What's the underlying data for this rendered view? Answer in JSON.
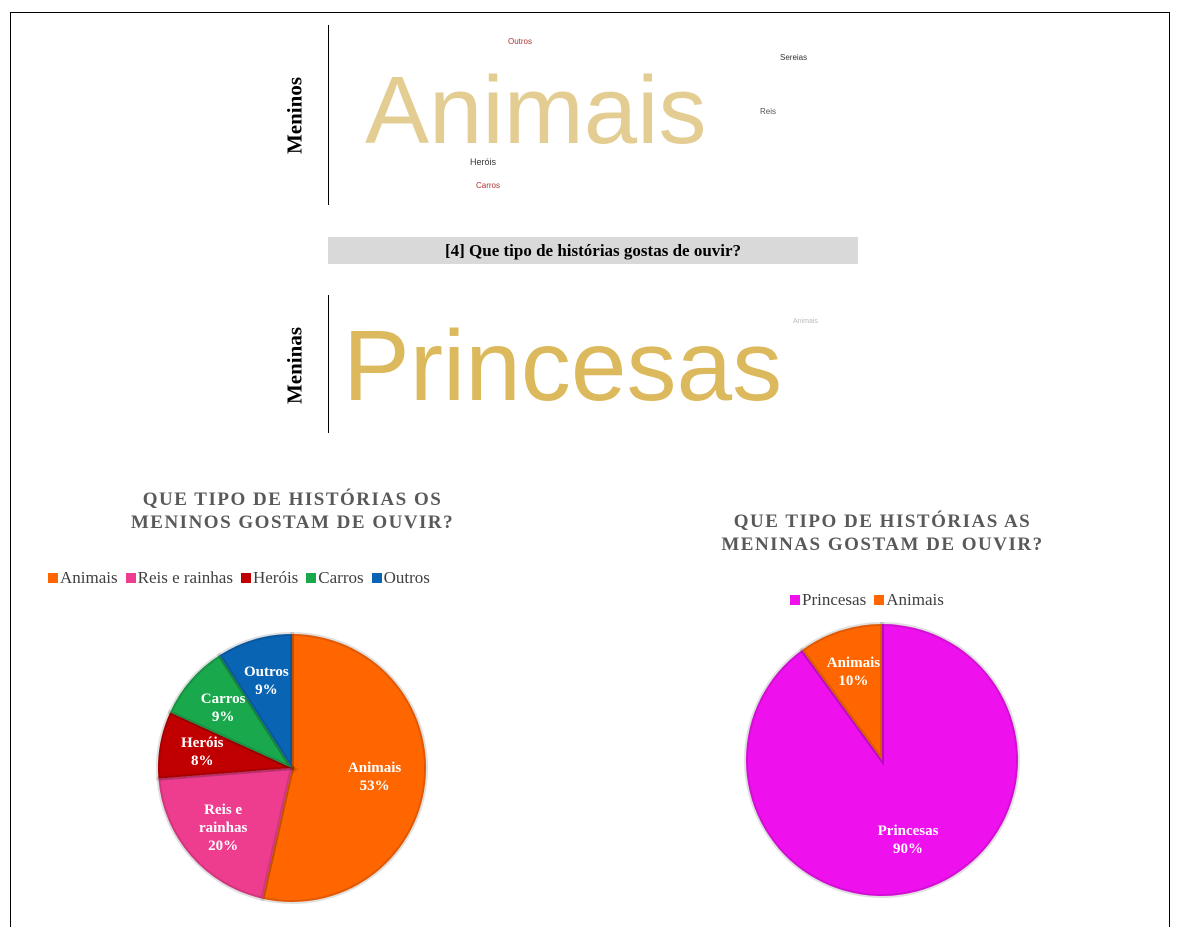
{
  "word_clouds": [
    {
      "label": "Meninos",
      "words": [
        "Animais",
        "Outros",
        "Sereias",
        "Reis",
        "Heróis",
        "Carros"
      ]
    },
    {
      "label": "Meninas",
      "words": [
        "Princesas",
        "Animais"
      ]
    }
  ],
  "question": "[4] Que tipo de histórias gostas de ouvir?",
  "chart_data": [
    {
      "type": "pie",
      "title": "QUE TIPO DE HISTÓRIAS OS MENINOS GOSTAM DE OUVIR?",
      "categories": [
        "Animais",
        "Reis e rainhas",
        "Heróis",
        "Carros",
        "Outros"
      ],
      "values": [
        53,
        20,
        8,
        9,
        9
      ],
      "value_labels": [
        "53%",
        "20%",
        "8%",
        "9%",
        "9%"
      ],
      "colors": [
        "#ff6600",
        "#ee3d8f",
        "#c00000",
        "#1aa84c",
        "#0a64b4"
      ]
    },
    {
      "type": "pie",
      "title": "QUE TIPO DE HISTÓRIAS AS MENINAS GOSTAM DE OUVIR?",
      "categories": [
        "Princesas",
        "Animais"
      ],
      "values": [
        90,
        10
      ],
      "value_labels": [
        "90%",
        "10%"
      ],
      "colors": [
        "#ee11ee",
        "#ff6600"
      ]
    }
  ]
}
